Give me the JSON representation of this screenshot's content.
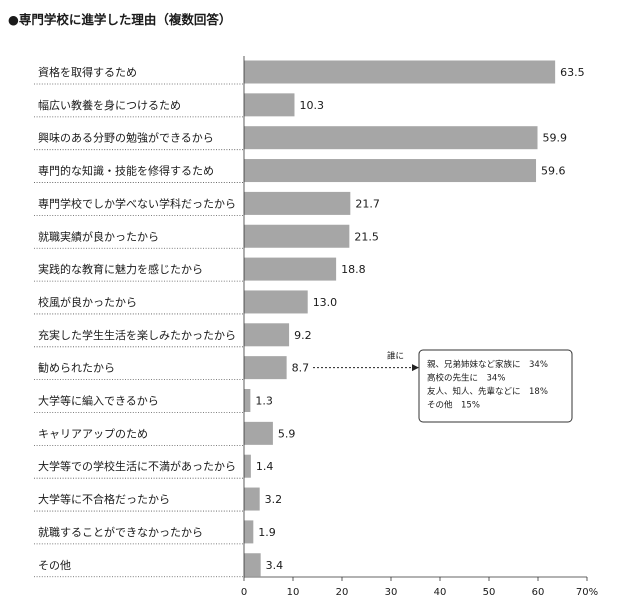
{
  "chart_data": {
    "type": "bar",
    "orientation": "horizontal",
    "title": "●専門学校に進学した理由（複数回答）",
    "categories": [
      "資格を取得するため",
      "幅広い教養を身につけるため",
      "興味のある分野の勉強ができるから",
      "専門的な知識・技能を修得するため",
      "専門学校でしか学べない学科だったから",
      "就職実績が良かったから",
      "実践的な教育に魅力を感じたから",
      "校風が良かったから",
      "充実した学生生活を楽しみたかったから",
      "勧められたから",
      "大学等に編入できるから",
      "キャリアアップのため",
      "大学等での学校生活に不満があったから",
      "大学等に不合格だったから",
      "就職することができなかったから",
      "その他"
    ],
    "values": [
      63.5,
      10.3,
      59.9,
      59.6,
      21.7,
      21.5,
      18.8,
      13.0,
      9.2,
      8.7,
      1.3,
      5.9,
      1.4,
      3.2,
      1.9,
      3.4
    ],
    "value_labels": [
      "63.5",
      "10.3",
      "59.9",
      "59.6",
      "21.7",
      "21.5",
      "18.8",
      "13.0",
      "9.2",
      "8.7",
      "1.3",
      "5.9",
      "1.4",
      "3.2",
      "1.9",
      "3.4"
    ],
    "xlim": [
      0,
      70
    ],
    "xticks": [
      "0",
      "10",
      "20",
      "30",
      "40",
      "50",
      "60",
      "70%"
    ],
    "bar_color": "#a6a6a6",
    "grid": false,
    "annotation": {
      "arrow_from_category": "勧められたから",
      "arrow_label": "誰に",
      "lines": [
        "親、兄弟姉妹など家族に　34%",
        "高校の先生に　34%",
        "友人、知人、先輩などに　18%",
        "その他　15%"
      ]
    }
  }
}
